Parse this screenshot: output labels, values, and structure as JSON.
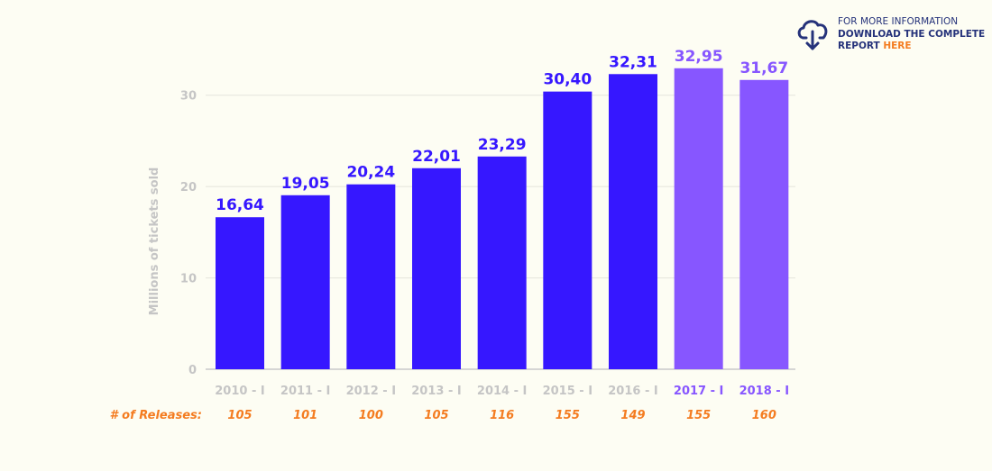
{
  "info": {
    "line1": "FOR MORE INFORMATION",
    "line2": "DOWNLOAD THE COMPLETE",
    "line3_prefix": "REPORT",
    "line3_link": "HERE",
    "icon": "cloud-download-icon"
  },
  "colors": {
    "primary": "#3617ff",
    "secondary": "#8756ff",
    "accent": "#f47c20",
    "axis_text": "#c5c5c5",
    "navy": "#25327a"
  },
  "chart_data": {
    "type": "bar",
    "categories": [
      "2010 - I",
      "2011 - I",
      "2012 - I",
      "2013 - I",
      "2014 - I",
      "2015 - I",
      "2016 - I",
      "2017 - I",
      "2018 - I"
    ],
    "values": [
      16.64,
      19.05,
      20.24,
      22.01,
      23.29,
      30.4,
      32.31,
      32.95,
      31.67
    ],
    "value_labels": [
      "16,64",
      "19,05",
      "20,24",
      "22,01",
      "23,29",
      "30,40",
      "32,31",
      "32,95",
      "31,67"
    ],
    "highlight_from_index": 7,
    "ylabel": "Millions of tickets sold",
    "ylim": [
      0,
      35
    ],
    "yticks": [
      0,
      10,
      20,
      30
    ],
    "grid": true,
    "releases_label": "# of Releases:",
    "releases": [
      "105",
      "101",
      "100",
      "105",
      "116",
      "155",
      "149",
      "155",
      "160"
    ]
  }
}
